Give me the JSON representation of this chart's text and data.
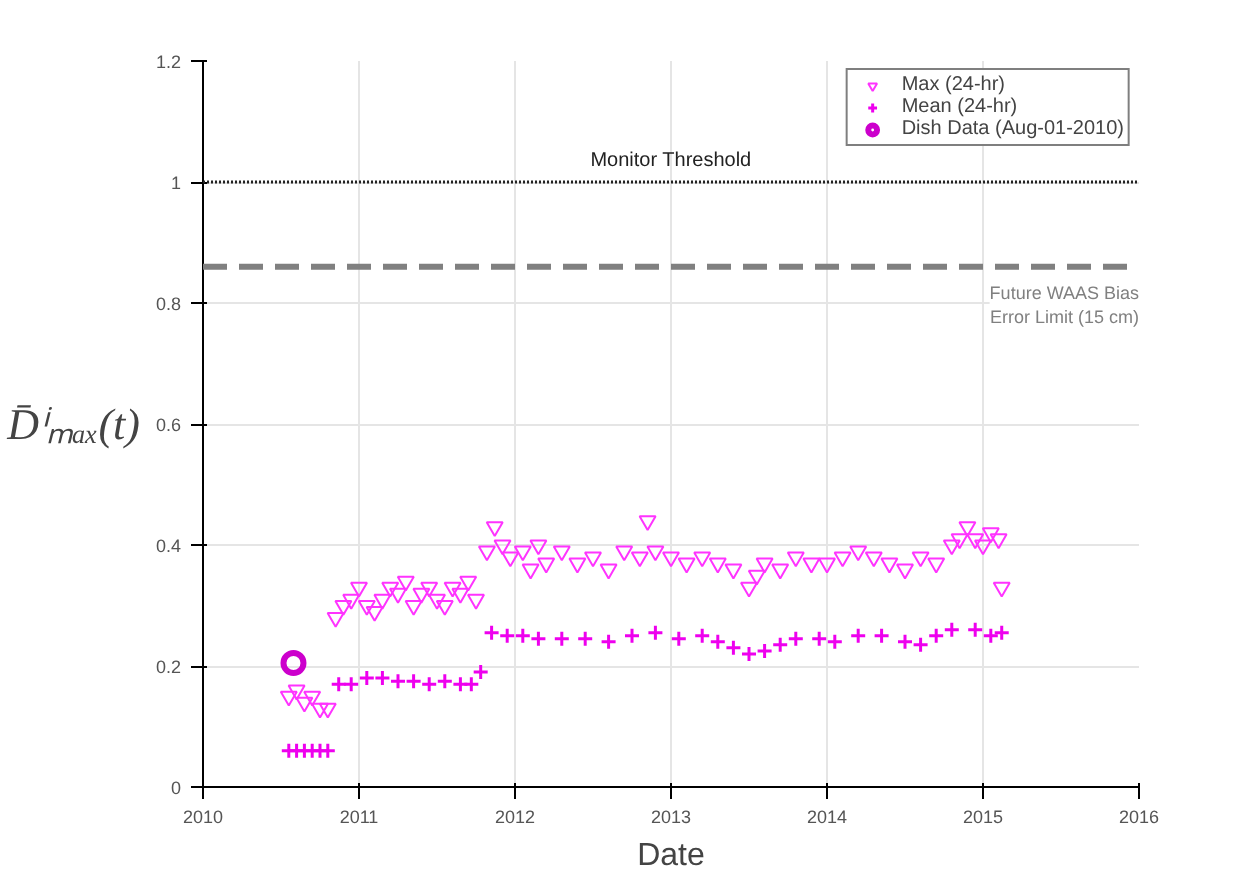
{
  "chart_data": {
    "type": "scatter",
    "xlabel": "Date",
    "ylabel": "D̄ⁱₘₐₓ(t)",
    "xlim": [
      2010,
      2016
    ],
    "xticks": [
      2010,
      2011,
      2012,
      2013,
      2014,
      2015,
      2016
    ],
    "ylim": [
      0,
      1.2
    ],
    "yticks": [
      0,
      0.2,
      0.4,
      0.6,
      0.8,
      1,
      1.2
    ],
    "grid": true,
    "legend": "top right",
    "series": [
      {
        "name": "Max (24-hr)",
        "color": "#ff33ff",
        "marker": "triangle",
        "x": [
          2010.55,
          2010.6,
          2010.65,
          2010.7,
          2010.75,
          2010.8,
          2010.85,
          2010.9,
          2010.95,
          2011.0,
          2011.05,
          2011.1,
          2011.15,
          2011.2,
          2011.25,
          2011.3,
          2011.35,
          2011.4,
          2011.45,
          2011.5,
          2011.55,
          2011.6,
          2011.65,
          2011.7,
          2011.75,
          2011.82,
          2011.87,
          2011.92,
          2011.97,
          2012.05,
          2012.1,
          2012.15,
          2012.2,
          2012.3,
          2012.4,
          2012.5,
          2012.6,
          2012.7,
          2012.8,
          2012.85,
          2012.9,
          2013.0,
          2013.1,
          2013.2,
          2013.3,
          2013.4,
          2013.5,
          2013.55,
          2013.6,
          2013.7,
          2013.8,
          2013.9,
          2014.0,
          2014.1,
          2014.2,
          2014.3,
          2014.4,
          2014.5,
          2014.6,
          2014.7,
          2014.8,
          2014.85,
          2014.9,
          2014.95,
          2015.0,
          2015.05,
          2015.1,
          2015.12
        ],
        "values": [
          0.15,
          0.16,
          0.14,
          0.15,
          0.13,
          0.13,
          0.28,
          0.3,
          0.31,
          0.33,
          0.3,
          0.29,
          0.31,
          0.33,
          0.32,
          0.34,
          0.3,
          0.32,
          0.33,
          0.31,
          0.3,
          0.33,
          0.32,
          0.34,
          0.31,
          0.39,
          0.43,
          0.4,
          0.38,
          0.39,
          0.36,
          0.4,
          0.37,
          0.39,
          0.37,
          0.38,
          0.36,
          0.39,
          0.38,
          0.44,
          0.39,
          0.38,
          0.37,
          0.38,
          0.37,
          0.36,
          0.33,
          0.35,
          0.37,
          0.36,
          0.38,
          0.37,
          0.37,
          0.38,
          0.39,
          0.38,
          0.37,
          0.36,
          0.38,
          0.37,
          0.4,
          0.41,
          0.43,
          0.41,
          0.4,
          0.42,
          0.41,
          0.33
        ]
      },
      {
        "name": "Mean (24-hr)",
        "color": "#ee00ee",
        "marker": "cross",
        "x": [
          2010.55,
          2010.6,
          2010.65,
          2010.7,
          2010.75,
          2010.8,
          2010.87,
          2010.95,
          2011.05,
          2011.15,
          2011.25,
          2011.35,
          2011.45,
          2011.55,
          2011.65,
          2011.72,
          2011.78,
          2011.85,
          2011.95,
          2012.05,
          2012.15,
          2012.3,
          2012.45,
          2012.6,
          2012.75,
          2012.9,
          2013.05,
          2013.2,
          2013.3,
          2013.4,
          2013.5,
          2013.6,
          2013.7,
          2013.8,
          2013.95,
          2014.05,
          2014.2,
          2014.35,
          2014.5,
          2014.6,
          2014.7,
          2014.8,
          2014.95,
          2015.05,
          2015.12
        ],
        "values": [
          0.06,
          0.06,
          0.06,
          0.06,
          0.06,
          0.06,
          0.17,
          0.17,
          0.18,
          0.18,
          0.175,
          0.175,
          0.17,
          0.175,
          0.17,
          0.17,
          0.19,
          0.255,
          0.25,
          0.25,
          0.245,
          0.245,
          0.245,
          0.24,
          0.25,
          0.255,
          0.245,
          0.25,
          0.24,
          0.23,
          0.22,
          0.225,
          0.235,
          0.245,
          0.245,
          0.24,
          0.25,
          0.25,
          0.24,
          0.235,
          0.25,
          0.26,
          0.26,
          0.25,
          0.255
        ]
      },
      {
        "name": "Dish Data (Aug-01-2010)",
        "color": "#cc00cc",
        "marker": "circle",
        "x": [
          2010.58
        ],
        "values": [
          0.205
        ]
      }
    ],
    "ref_lines": [
      {
        "axis": "y",
        "value": 1,
        "label": "Monitor Threshold",
        "color": "#222222",
        "line_style": "dotted"
      },
      {
        "axis": "y",
        "value": 0.86,
        "label": "Future WAAS Bias\nError Limit (15 cm)",
        "color": "#808080",
        "line_style": "dashed"
      }
    ]
  }
}
